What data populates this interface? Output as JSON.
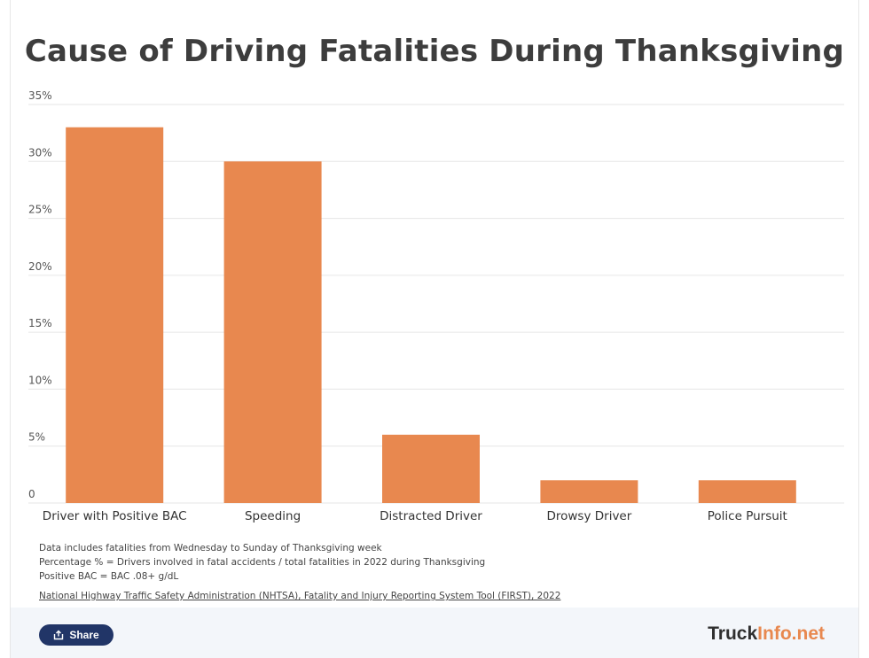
{
  "title": "Cause of Driving Fatalities During Thanksgiving",
  "notes": [
    "Data includes fatalities from Wednesday to Sunday of Thanksgiving week",
    "Percentage % = Drivers involved in fatal accidents / total fatalities in 2022 during Thanksgiving",
    "Positive BAC = BAC .08+ g/dL"
  ],
  "source": "National Highway Traffic Safety Administration (NHTSA), Fatality and Injury Reporting System Tool (FIRST), 2022",
  "footer": {
    "share_label": "Share",
    "share_icon": "share-icon",
    "brand_primary": "Truck",
    "brand_accent": "Info.net"
  },
  "colors": {
    "bar": "#e8884f",
    "grid": "#e6e6e6",
    "brand_accent": "#e8884f",
    "share_button": "#213567"
  },
  "chart_data": {
    "type": "bar",
    "title": "Cause of Driving Fatalities During Thanksgiving",
    "categories": [
      "Driver with Positive BAC",
      "Speeding",
      "Distracted Driver",
      "Drowsy Driver",
      "Police Pursuit"
    ],
    "values": [
      33,
      30,
      6,
      2,
      2
    ],
    "unit": "%",
    "ylim": [
      0,
      35
    ],
    "yticks": [
      0,
      5,
      10,
      15,
      20,
      25,
      30,
      35
    ],
    "ytick_labels": [
      "0",
      "5%",
      "10%",
      "15%",
      "20%",
      "25%",
      "30%",
      "35%"
    ],
    "xlabel": "",
    "ylabel": "",
    "grid": true,
    "legend": "none"
  }
}
